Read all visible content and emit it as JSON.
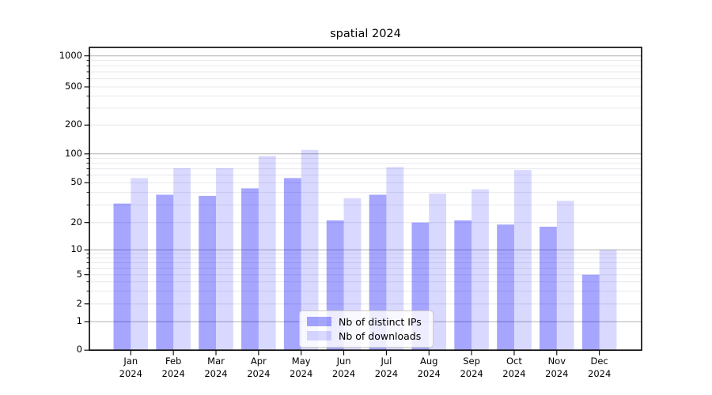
{
  "chart_data": {
    "type": "bar",
    "title": "spatial 2024",
    "categories": [
      "Jan 2024",
      "Feb 2024",
      "Mar 2024",
      "Apr 2024",
      "May 2024",
      "Jun 2024",
      "Jul 2024",
      "Aug 2024",
      "Sep 2024",
      "Oct 2024",
      "Nov 2024",
      "Dec 2024"
    ],
    "series": [
      {
        "name": "Nb of distinct IPs",
        "color": "#0000ff",
        "alpha": 0.35,
        "values": [
          31,
          38,
          37,
          44,
          56,
          21,
          38,
          20,
          21,
          19,
          18,
          5
        ]
      },
      {
        "name": "Nb of downloads",
        "color": "#0000ff",
        "alpha": 0.15,
        "values": [
          56,
          71,
          71,
          95,
          110,
          35,
          73,
          39,
          43,
          68,
          33,
          10
        ]
      }
    ],
    "y_axis": {
      "scale": "symlog",
      "tick_labels": [
        0,
        1,
        2,
        5,
        10,
        20,
        50,
        100,
        200,
        500,
        1000
      ],
      "minor_gridlines": [
        2,
        3,
        4,
        6,
        7,
        8,
        9,
        20,
        30,
        40,
        60,
        70,
        80,
        90,
        200,
        300,
        400,
        600,
        700,
        800,
        900
      ],
      "labeled_non_decade": [
        2,
        5,
        20,
        50,
        200,
        500
      ],
      "major_gridlines": [
        1,
        10,
        100,
        1000
      ],
      "ylim": [
        0,
        1300
      ]
    },
    "grid": {
      "major_color": "#b0b0b0",
      "minor_color": "#e9e9ee"
    },
    "legend": {
      "position": "lower-center"
    },
    "frame_color": "#000000"
  }
}
